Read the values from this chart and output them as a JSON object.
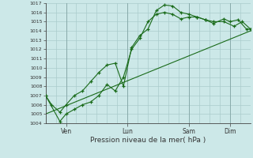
{
  "background_color": "#cce8e8",
  "grid_color": "#aacccc",
  "line_color": "#1a6b1a",
  "xlabel": "Pression niveau de la mer( hPa )",
  "ylim": [
    1004,
    1017
  ],
  "yticks": [
    1004,
    1005,
    1006,
    1007,
    1008,
    1009,
    1010,
    1011,
    1012,
    1013,
    1014,
    1015,
    1016,
    1017
  ],
  "xtick_labels": [
    "Ven",
    "Lun",
    "Sam",
    "Dim"
  ],
  "xtick_pos": [
    1,
    4,
    7,
    9
  ],
  "xlim": [
    0,
    10
  ],
  "line1_x": [
    0.0,
    0.3,
    0.7,
    1.0,
    1.4,
    1.8,
    2.2,
    2.6,
    3.0,
    3.4,
    3.8,
    4.2,
    4.6,
    5.0,
    5.4,
    5.8,
    6.2,
    6.6,
    7.0,
    7.4,
    7.8,
    8.2,
    8.7,
    9.0,
    9.4,
    9.8,
    10.0
  ],
  "line1_y": [
    1007.0,
    1006.0,
    1005.2,
    1006.0,
    1007.0,
    1007.5,
    1008.5,
    1009.5,
    1010.3,
    1010.5,
    1008.0,
    1012.2,
    1013.5,
    1014.2,
    1016.2,
    1016.8,
    1016.7,
    1016.0,
    1015.8,
    1015.5,
    1015.2,
    1014.8,
    1015.3,
    1015.0,
    1015.2,
    1014.2,
    1014.2
  ],
  "line2_x": [
    0.0,
    0.7,
    1.0,
    1.4,
    1.8,
    2.2,
    2.6,
    3.0,
    3.4,
    3.8,
    4.2,
    4.6,
    5.0,
    5.4,
    5.8,
    6.2,
    6.6,
    7.0,
    7.4,
    7.8,
    8.2,
    8.7,
    9.2,
    9.6,
    10.0
  ],
  "line2_y": [
    1007.0,
    1004.2,
    1005.0,
    1005.5,
    1006.0,
    1006.3,
    1007.0,
    1008.2,
    1007.5,
    1009.0,
    1012.0,
    1013.2,
    1015.0,
    1015.8,
    1016.0,
    1015.8,
    1015.3,
    1015.5,
    1015.5,
    1015.2,
    1015.0,
    1015.0,
    1014.5,
    1015.0,
    1014.2
  ],
  "line3_x": [
    0.0,
    10.0
  ],
  "line3_y": [
    1005.0,
    1014.0
  ],
  "vlines_x": [
    1,
    4,
    7,
    9
  ]
}
